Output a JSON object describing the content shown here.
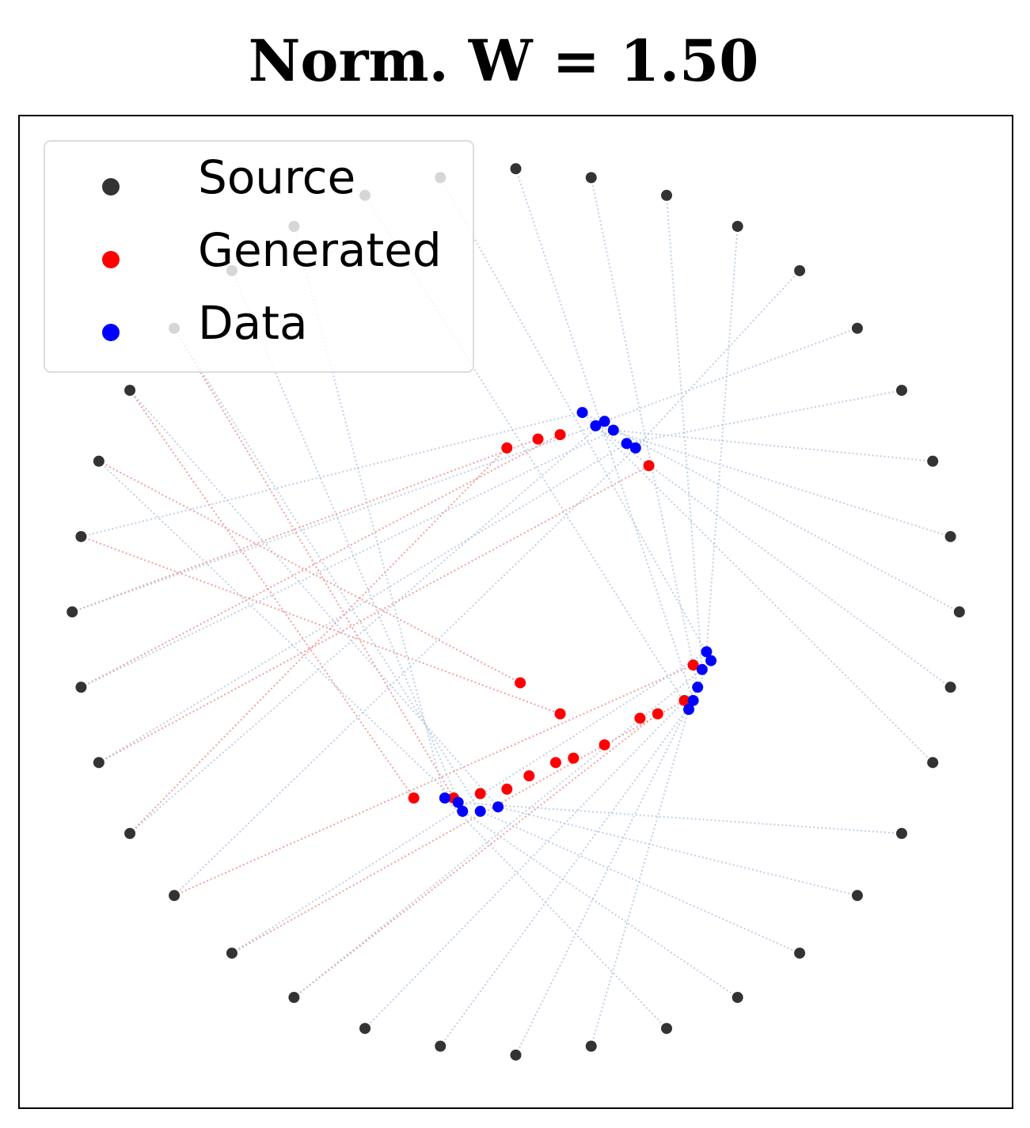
{
  "chart_data": {
    "type": "scatter",
    "title": "Norm. W = 1.50",
    "xlim": [
      -1.12,
      1.12
    ],
    "ylim": [
      -1.12,
      1.12
    ],
    "legend": "upper left",
    "series": [
      {
        "name": "Source",
        "color": "#333333",
        "x": [
          1,
          0.98,
          0.94,
          0.87,
          0.77,
          0.64,
          0.5,
          0.34,
          0.17,
          0,
          -0.17,
          -0.34,
          -0.5,
          -0.64,
          -0.77,
          -0.87,
          -0.94,
          -0.98,
          -1,
          -0.98,
          -0.94,
          -0.87,
          -0.77,
          -0.64,
          -0.5,
          -0.34,
          -0.17,
          0,
          0.17,
          0.34,
          0.5,
          0.64,
          0.77,
          0.87,
          0.94,
          0.98
        ],
        "y": [
          0,
          0.17,
          0.34,
          0.5,
          0.64,
          0.77,
          0.87,
          0.94,
          0.98,
          1,
          0.98,
          0.94,
          0.87,
          0.77,
          0.64,
          0.5,
          0.34,
          0.17,
          0,
          -0.17,
          -0.34,
          -0.5,
          -0.64,
          -0.77,
          -0.87,
          -0.94,
          -0.98,
          -1,
          -0.98,
          -0.94,
          -0.87,
          -0.77,
          -0.64,
          -0.5,
          -0.34,
          -0.17
        ]
      },
      {
        "name": "Generated",
        "color": "#ff0000",
        "x": [
          0.05,
          0.1,
          0.3,
          -0.02,
          0.4,
          0.38,
          0.32,
          0.28,
          0.2,
          0.13,
          0.09,
          0.03,
          -0.02,
          -0.08,
          -0.14,
          -0.23,
          0.01,
          0.1
        ],
        "y": [
          0.39,
          0.4,
          0.33,
          0.37,
          -0.12,
          -0.2,
          -0.23,
          -0.24,
          -0.3,
          -0.33,
          -0.34,
          -0.37,
          -0.4,
          -0.41,
          -0.42,
          -0.42,
          -0.16,
          -0.23
        ]
      },
      {
        "name": "Data",
        "color": "#0000ff",
        "x": [
          0.15,
          0.18,
          0.22,
          0.25,
          0.2,
          0.27,
          0.43,
          0.42,
          0.41,
          0.4,
          0.44,
          0.39,
          -0.16,
          -0.12,
          -0.08,
          -0.04,
          -0.13
        ],
        "y": [
          0.45,
          0.42,
          0.41,
          0.38,
          0.43,
          0.37,
          -0.09,
          -0.13,
          -0.17,
          -0.2,
          -0.11,
          -0.22,
          -0.42,
          -0.45,
          -0.45,
          -0.44,
          -0.43
        ]
      }
    ]
  }
}
